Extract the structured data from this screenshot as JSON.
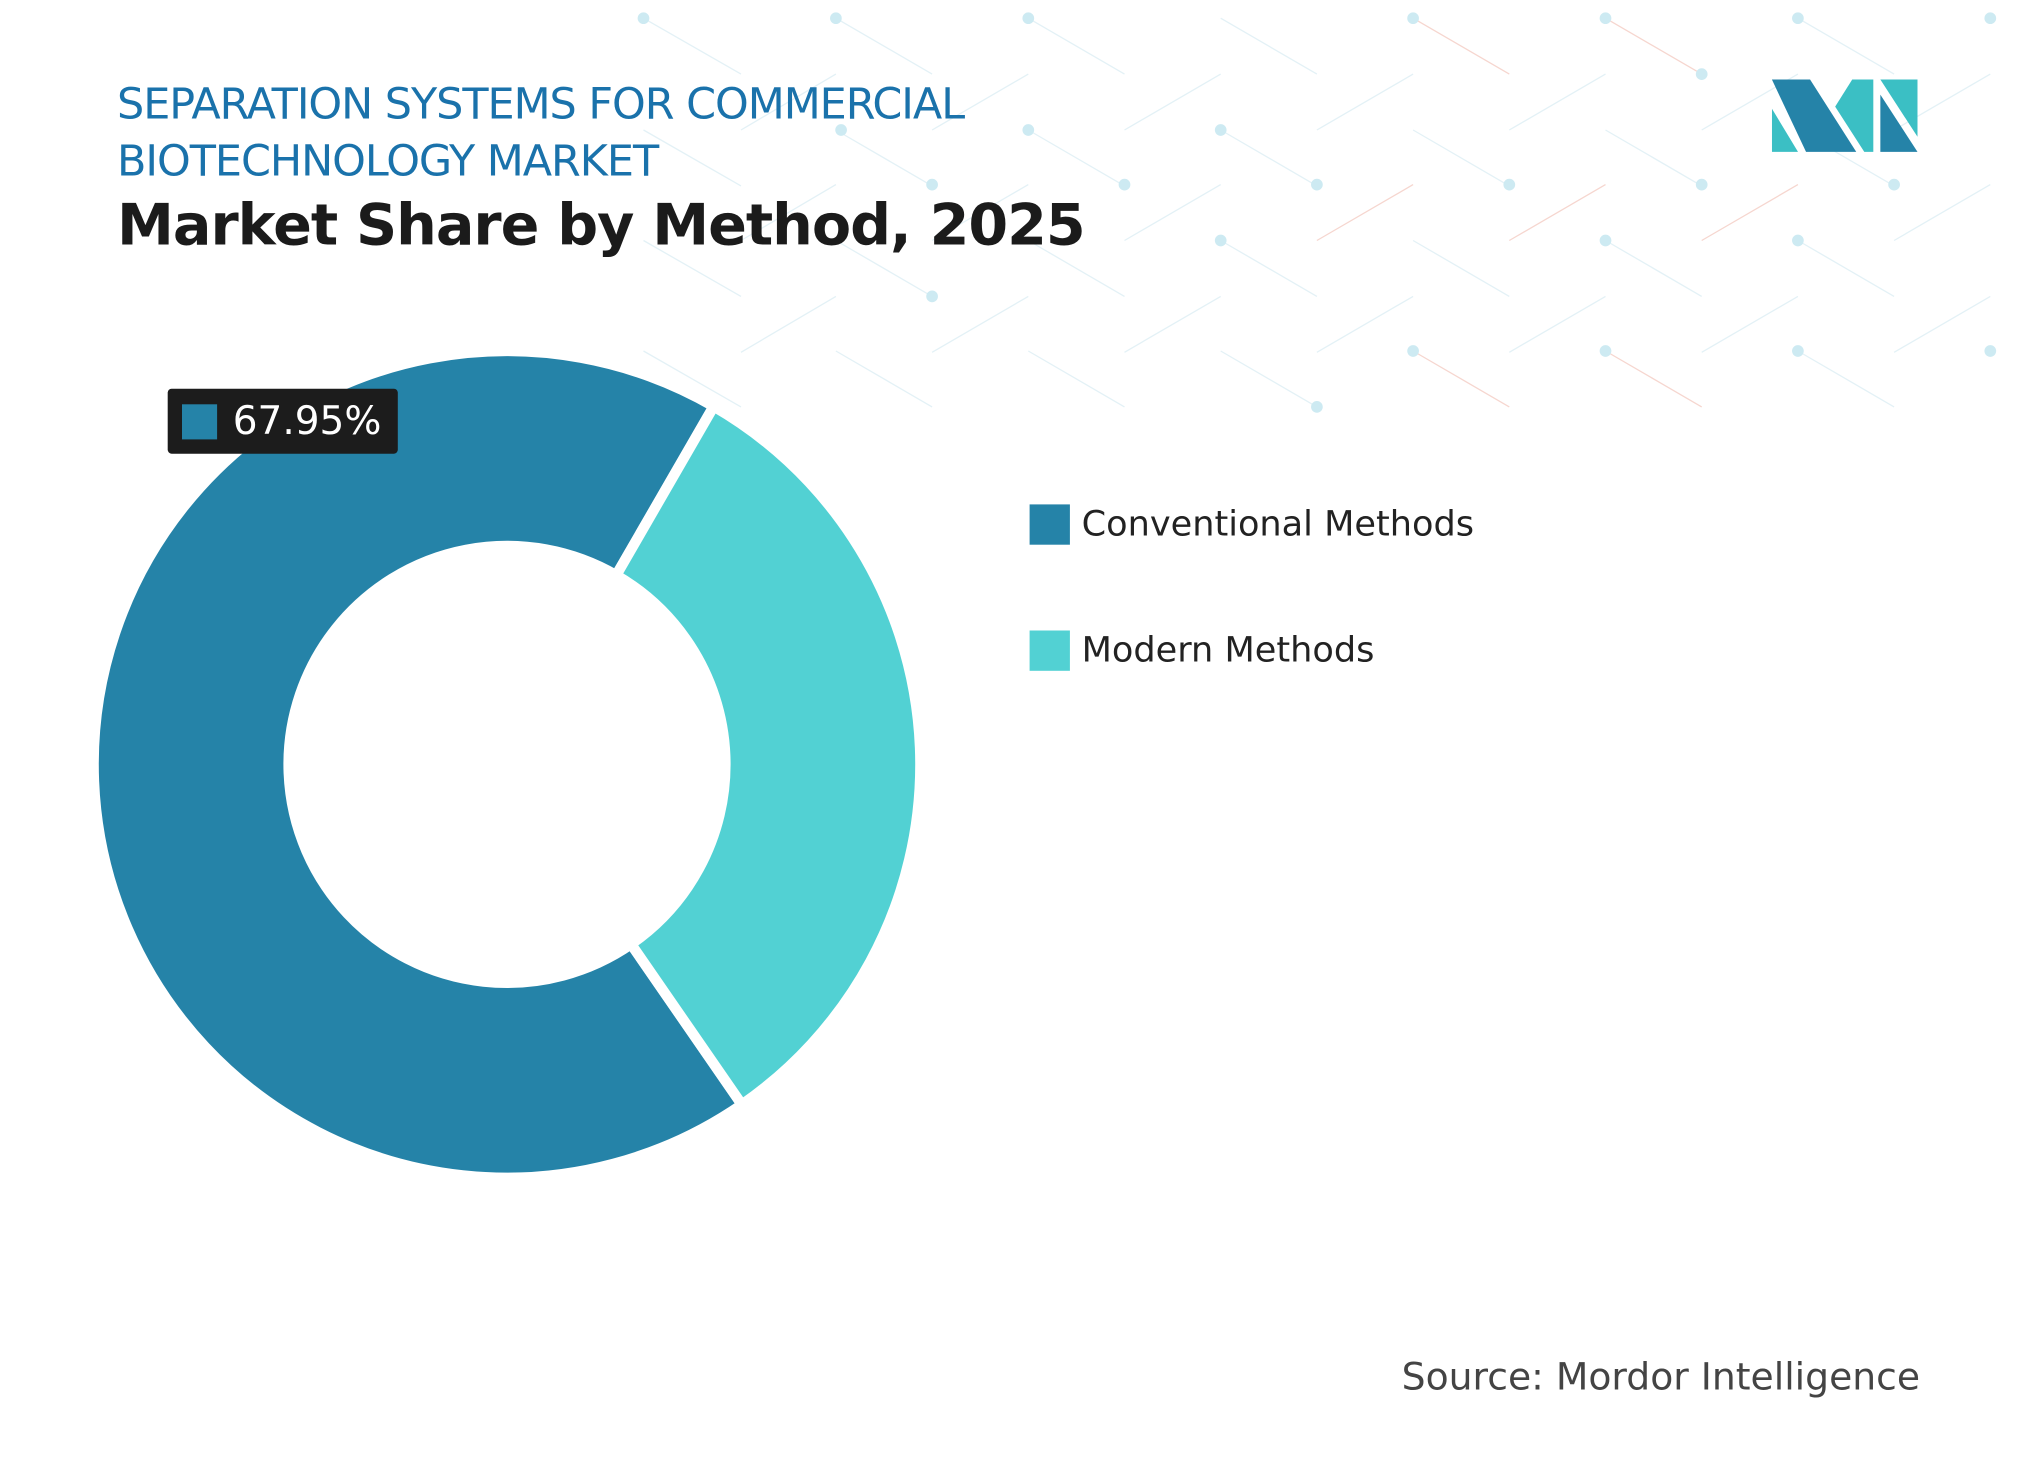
{
  "header": {
    "title": "SEPARATION SYSTEMS FOR COMMERCIAL BIOTECHNOLOGY MARKET",
    "subtitle": "Market Share by Method, 2025"
  },
  "logo": {
    "text": "Mordor Intelligence logo"
  },
  "colors": {
    "title": "#1a72ab",
    "conventional": "#2583a8",
    "modern": "#52d1d3"
  },
  "chart_data": {
    "type": "pie",
    "variant": "donut",
    "title": "Market Share by Method, 2025",
    "categories": [
      "Conventional Methods",
      "Modern Methods"
    ],
    "values": [
      67.95,
      32.05
    ],
    "unit": "%",
    "data_labels": [
      "67.95%"
    ],
    "legend_position": "right"
  },
  "source": "Source: Mordor Intelligence"
}
